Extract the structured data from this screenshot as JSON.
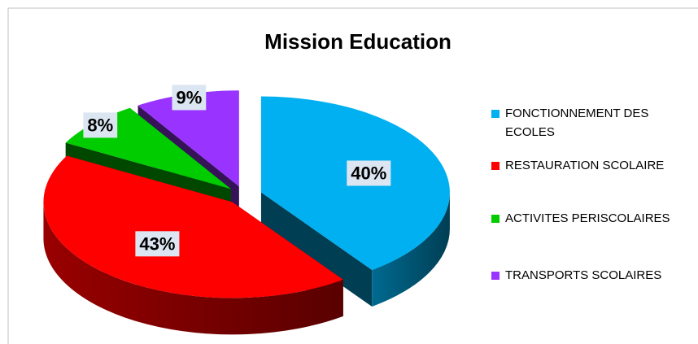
{
  "chart_data": {
    "type": "pie3d",
    "title": "Mission Education",
    "categories": [
      "FONCTIONNEMENT DES ECOLES",
      "RESTAURATION SCOLAIRE",
      "ACTIVITES PERISCOLAIRES",
      "TRANSPORTS SCOLAIRES"
    ],
    "values": [
      40,
      43,
      8,
      9
    ],
    "value_labels": [
      "40%",
      "43%",
      "8%",
      "9%"
    ],
    "colors": [
      "#00b0f0",
      "#ff0000",
      "#00cc00",
      "#9933ff"
    ],
    "legend": "right"
  }
}
